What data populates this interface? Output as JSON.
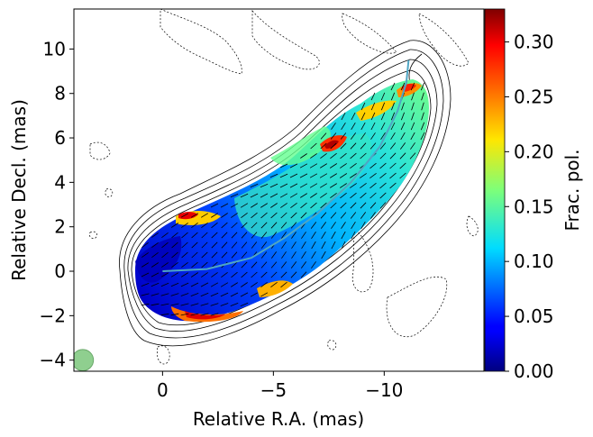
{
  "chart_data": {
    "type": "heatmap",
    "title": "",
    "xlabel": "Relative R.A. (mas)",
    "ylabel": "Relative Decl. (mas)",
    "xlim": [
      4,
      -14.5
    ],
    "ylim": [
      -4.5,
      11.8
    ],
    "x_ticks": [
      0,
      -5,
      -10
    ],
    "x_tick_labels": [
      "0",
      "−5",
      "−10"
    ],
    "y_ticks": [
      -4,
      -2,
      0,
      2,
      4,
      6,
      8,
      10
    ],
    "y_tick_labels": [
      "−4",
      "−2",
      "0",
      "2",
      "4",
      "6",
      "8",
      "10"
    ],
    "colorbar": {
      "label": "Frac. pol.",
      "range": [
        0,
        0.33
      ],
      "ticks": [
        0,
        0.05,
        0.1,
        0.15,
        0.2,
        0.25,
        0.3
      ],
      "tick_labels": [
        "0.00",
        "0.05",
        "0.10",
        "0.15",
        "0.20",
        "0.25",
        "0.30"
      ],
      "colormap": "jet"
    },
    "ridge_line": {
      "color": "#4fa6c4",
      "points": [
        [
          0,
          0
        ],
        [
          -2,
          0.1
        ],
        [
          -4,
          0.6
        ],
        [
          -5.5,
          1.5
        ],
        [
          -7,
          2.6
        ],
        [
          -8.5,
          4.0
        ],
        [
          -9.8,
          5.6
        ],
        [
          -10.6,
          7.2
        ],
        [
          -11.0,
          8.5
        ],
        [
          -11.1,
          9.5
        ]
      ]
    },
    "beam": {
      "x": 3.6,
      "y": -4.0,
      "diameter": 0.8,
      "color": "#8fcf8f"
    },
    "grid": false,
    "legend": "none"
  }
}
